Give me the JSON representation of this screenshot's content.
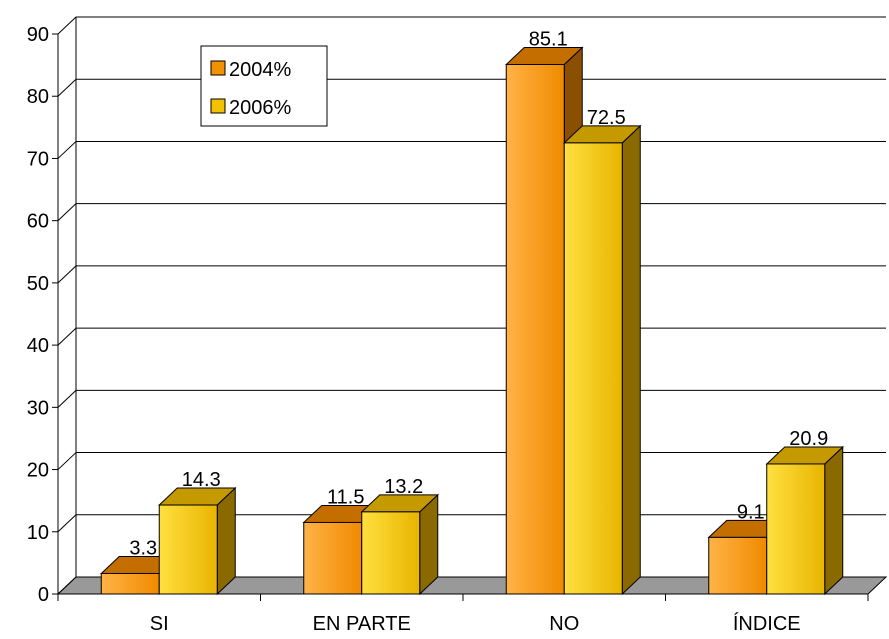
{
  "chart_data": {
    "type": "bar",
    "title": "",
    "xlabel": "",
    "ylabel": "",
    "categories": [
      "SI",
      "EN PARTE",
      "NO",
      "ÍNDICE"
    ],
    "series": [
      {
        "name": "2004%",
        "values": [
          3.3,
          11.5,
          85.1,
          9.1
        ],
        "color": "#f39200",
        "data_labels": [
          "3.3",
          "11.5",
          "85.1",
          "9.1"
        ]
      },
      {
        "name": "2006%",
        "values": [
          14.3,
          13.2,
          72.5,
          20.9
        ],
        "color": "#f2c200",
        "data_labels": [
          "14.3",
          "13.2",
          "72.5",
          "20.9"
        ]
      }
    ],
    "ylim": [
      0,
      90
    ],
    "yticks": [
      0,
      10,
      20,
      30,
      40,
      50,
      60,
      70,
      80,
      90
    ],
    "ytick_labels": [
      "0",
      "10",
      "20",
      "30",
      "40",
      "50",
      "60",
      "70",
      "80",
      "90"
    ],
    "grid": true,
    "three_d": true,
    "legend_position": "top-left inside plot"
  }
}
